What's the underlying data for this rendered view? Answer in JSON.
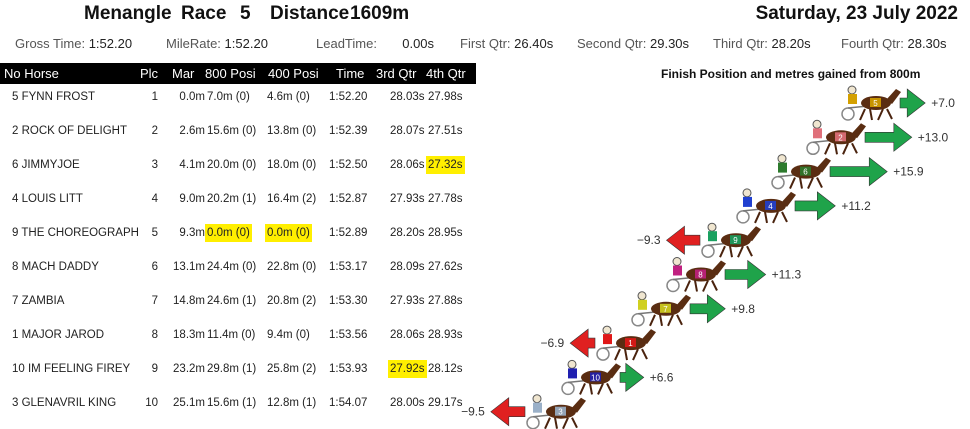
{
  "header": {
    "track": "Menangle",
    "race_label": "Race",
    "race_no": "5",
    "distance_label": "Distance",
    "distance": "1609m",
    "date": "Saturday, 23 July 2022"
  },
  "stats": {
    "gross_label": "Gross Time:",
    "gross": "1:52.20",
    "mile_label": "MileRate:",
    "mile": "1:52.20",
    "lead_label": "LeadTime:",
    "lead": "0.00s",
    "q1_label": "First Qtr:",
    "q1": "26.40s",
    "q2_label": "Second Qtr:",
    "q2": "29.30s",
    "q3_label": "Third Qtr:",
    "q3": "28.20s",
    "q4_label": "Fourth Qtr:",
    "q4": "28.30s"
  },
  "table": {
    "columns": [
      "No Horse",
      "Plc",
      "Mar",
      "800 Posi",
      "400 Posi",
      "Time",
      "3rd Qtr",
      "4th Qtr"
    ],
    "rows": [
      {
        "horse": "5 FYNN FROST",
        "plc": "1",
        "mar": "0.0m",
        "p800": "7.0m (0)",
        "p400": "4.6m (0)",
        "time": "1:52.20",
        "q3": "28.03s",
        "q4": "27.98s"
      },
      {
        "horse": "2 ROCK OF DELIGHT",
        "plc": "2",
        "mar": "2.6m",
        "p800": "15.6m (0)",
        "p400": "13.8m (0)",
        "time": "1:52.39",
        "q3": "28.07s",
        "q4": "27.51s"
      },
      {
        "horse": "6 JIMMYJOE",
        "plc": "3",
        "mar": "4.1m",
        "p800": "20.0m (0)",
        "p400": "18.0m (0)",
        "time": "1:52.50",
        "q3": "28.06s",
        "q4": "27.32s"
      },
      {
        "horse": "4 LOUIS LITT",
        "plc": "4",
        "mar": "9.0m",
        "p800": "20.2m (1)",
        "p400": "16.4m (2)",
        "time": "1:52.87",
        "q3": "27.93s",
        "q4": "27.78s"
      },
      {
        "horse": "9 THE CHOREOGRAPH",
        "plc": "5",
        "mar": "9.3m",
        "p800": "0.0m (0)",
        "p400": "0.0m (0)",
        "time": "1:52.89",
        "q3": "28.20s",
        "q4": "28.95s"
      },
      {
        "horse": "8 MACH DADDY",
        "plc": "6",
        "mar": "13.1m",
        "p800": "24.4m (0)",
        "p400": "22.8m (0)",
        "time": "1:53.17",
        "q3": "28.09s",
        "q4": "27.62s"
      },
      {
        "horse": "7 ZAMBIA",
        "plc": "7",
        "mar": "14.8m",
        "p800": "24.6m (1)",
        "p400": "20.8m (2)",
        "time": "1:53.30",
        "q3": "27.93s",
        "q4": "27.88s"
      },
      {
        "horse": "1 MAJOR JAROD",
        "plc": "8",
        "mar": "18.3m",
        "p800": "11.4m (0)",
        "p400": "9.4m (0)",
        "time": "1:53.56",
        "q3": "28.06s",
        "q4": "28.93s"
      },
      {
        "horse": "10 IM FEELING FIREY",
        "plc": "9",
        "mar": "23.2m",
        "p800": "29.8m (1)",
        "p400": "25.8m (2)",
        "time": "1:53.93",
        "q3": "27.92s",
        "q4": "28.12s"
      },
      {
        "horse": "3 GLENAVRIL KING",
        "plc": "10",
        "mar": "25.1m",
        "p800": "15.6m (1)",
        "p400": "12.8m (1)",
        "time": "1:54.07",
        "q3": "28.00s",
        "q4": "29.17s"
      }
    ],
    "highlight_color": "#ffef00"
  },
  "chart_data": {
    "type": "bar",
    "title": "Finish Position and metres gained from 800m",
    "categories": [
      "5",
      "2",
      "6",
      "4",
      "9",
      "8",
      "7",
      "1",
      "10",
      "3"
    ],
    "values": [
      7.0,
      13.0,
      15.9,
      11.2,
      -9.3,
      11.3,
      9.8,
      -6.9,
      6.6,
      -9.5
    ],
    "labels": [
      "+7.0",
      "+13.0",
      "+15.9",
      "+11.2",
      "−9.3",
      "+11.3",
      "+9.8",
      "−6.9",
      "+6.6",
      "−9.5"
    ],
    "positive_color": "#1fa34a",
    "negative_color": "#e02020",
    "silk_colors": [
      "#d4a000",
      "#e0707a",
      "#2d7a2d",
      "#2040d0",
      "#1aa060",
      "#c02080",
      "#d0d020",
      "#e01818",
      "#2020b0",
      "#9ab0c8"
    ]
  }
}
